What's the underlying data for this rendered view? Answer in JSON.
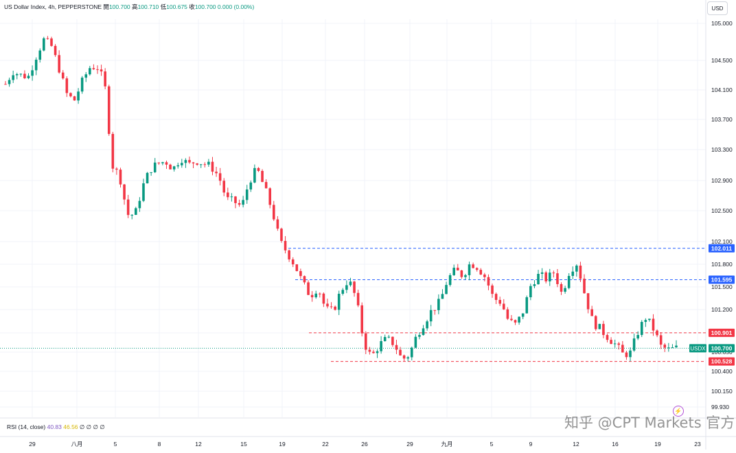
{
  "header": {
    "symbol": "US Dollar Index, 4h, PEPPERSTONE",
    "open_label": "開",
    "open": "100.700",
    "high_label": "高",
    "high": "100.710",
    "low_label": "低",
    "low": "100.675",
    "close_label": "收",
    "close": "100.700",
    "change": "0.000 (0.00%)"
  },
  "currency_button": "USD",
  "rsi": {
    "label": "RSI (14, close)",
    "value1": "40.83",
    "value2": "46.56",
    "extra": "∅ ∅ ∅ ∅"
  },
  "watermark": "知乎 @CPT Markets 官方",
  "colors": {
    "up": "#089981",
    "down": "#f23645",
    "blue_line": "#2962ff",
    "red_line": "#f23645"
  },
  "chart_data": {
    "type": "candlestick",
    "title": "US Dollar Index, 4h, PEPPERSTONE",
    "y_ticks": [
      "105.000",
      "104.500",
      "104.100",
      "103.700",
      "103.300",
      "102.900",
      "102.500",
      "102.100",
      "101.800",
      "101.500",
      "101.200",
      "100.900",
      "100.650",
      "100.400",
      "100.150",
      "99.930"
    ],
    "x_ticks": [
      "29",
      "八月",
      "5",
      "8",
      "12",
      "15",
      "19",
      "22",
      "26",
      "29",
      "九月",
      "5",
      "9",
      "12",
      "16",
      "19",
      "23"
    ],
    "ylim": [
      99.93,
      105.0
    ],
    "grid": true,
    "price_lines": [
      {
        "label": "102.011",
        "value": 102.011,
        "style": "dashed",
        "color": "blue"
      },
      {
        "label": "101.595",
        "value": 101.595,
        "style": "dashed",
        "color": "blue"
      },
      {
        "label": "100.901",
        "value": 100.901,
        "style": "dashed",
        "color": "red"
      },
      {
        "label": "100.528",
        "value": 100.528,
        "style": "dashed",
        "color": "red"
      }
    ],
    "last_price": {
      "symbol": "USDX",
      "value": "100.700"
    },
    "close_path": [
      104.18,
      104.35,
      104.3,
      104.28,
      104.55,
      104.78,
      104.7,
      104.4,
      104.05,
      103.95,
      104.2,
      104.4,
      104.42,
      104.2,
      103.1,
      102.95,
      102.45,
      102.45,
      102.82,
      103.05,
      103.12,
      103.15,
      103.05,
      103.2,
      103.1,
      103.16,
      103.12,
      103.08,
      102.95,
      102.65,
      102.62,
      102.55,
      102.9,
      103.05,
      102.8,
      102.5,
      102.1,
      101.95,
      101.78,
      101.55,
      101.38,
      101.5,
      101.2,
      101.18,
      101.45,
      101.6,
      101.35,
      100.78,
      100.58,
      100.74,
      100.82,
      100.76,
      100.55,
      100.62,
      100.88,
      101.05,
      101.2,
      101.3,
      101.6,
      101.72,
      101.65,
      101.82,
      101.76,
      101.62,
      101.35,
      101.3,
      101.05,
      101.0,
      101.2,
      101.55,
      101.66,
      101.6,
      101.7,
      101.4,
      101.72,
      101.82,
      101.4,
      101.05,
      100.95,
      100.85,
      100.75,
      100.62,
      100.64,
      100.92,
      101.1,
      100.95,
      100.72,
      100.68,
      100.7
    ]
  }
}
